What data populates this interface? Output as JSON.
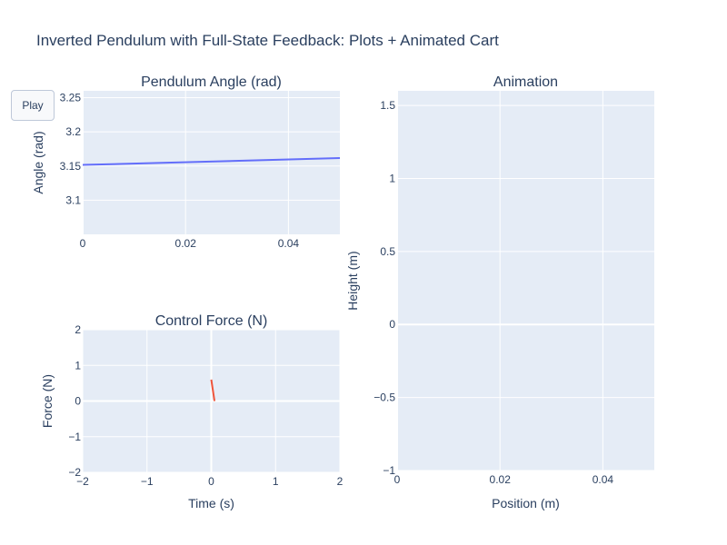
{
  "figure": {
    "title": "Inverted Pendulum with Full-State Feedback: Plots + Animated Cart",
    "play_label": "Play"
  },
  "colors": {
    "plot_bg": "#e5ecf6",
    "grid": "#ffffff",
    "text": "#2a3f5f",
    "angle_line": "#636efa",
    "force_line": "#ef553b"
  },
  "chart_data": [
    {
      "id": "angle",
      "type": "line",
      "title": "Pendulum Angle (rad)",
      "xlabel": "",
      "ylabel": "Angle (rad)",
      "xlim": [
        0,
        0.05
      ],
      "ylim": [
        3.05,
        3.26
      ],
      "xticks": [
        0,
        0.02,
        0.04
      ],
      "xtick_labels": [
        "0",
        "0.02",
        "0.04"
      ],
      "yticks": [
        3.1,
        3.15,
        3.2,
        3.25
      ],
      "ytick_labels": [
        "3.1",
        "3.15",
        "3.2",
        "3.25"
      ],
      "grid": true,
      "series": [
        {
          "name": "Angle",
          "x": [
            0,
            0.05
          ],
          "y": [
            3.1516,
            3.1616
          ]
        }
      ]
    },
    {
      "id": "force",
      "type": "line",
      "title": "Control Force (N)",
      "xlabel": "Time (s)",
      "ylabel": "Force (N)",
      "xlim": [
        -2,
        2
      ],
      "ylim": [
        -2,
        2
      ],
      "xticks": [
        -2,
        -1,
        0,
        1,
        2
      ],
      "xtick_labels": [
        "−2",
        "−1",
        "0",
        "1",
        "2"
      ],
      "yticks": [
        -2,
        -1,
        0,
        1,
        2
      ],
      "ytick_labels": [
        "−2",
        "−1",
        "0",
        "1",
        "2"
      ],
      "grid": true,
      "series": [
        {
          "name": "Force",
          "x": [
            0,
            0.05
          ],
          "y": [
            0.6,
            0.0
          ]
        }
      ]
    },
    {
      "id": "animation",
      "type": "line",
      "title": "Animation",
      "xlabel": "Position (m)",
      "ylabel": "Height (m)",
      "xlim": [
        0,
        0.05
      ],
      "ylim": [
        -1,
        1.6
      ],
      "xticks": [
        0,
        0.02,
        0.04
      ],
      "xtick_labels": [
        "0",
        "0.02",
        "0.04"
      ],
      "yticks": [
        -1,
        -0.5,
        0,
        0.5,
        1,
        1.5
      ],
      "ytick_labels": [
        "−1",
        "−0.5",
        "0",
        "0.5",
        "1",
        "1.5"
      ],
      "grid": true,
      "series": []
    }
  ]
}
